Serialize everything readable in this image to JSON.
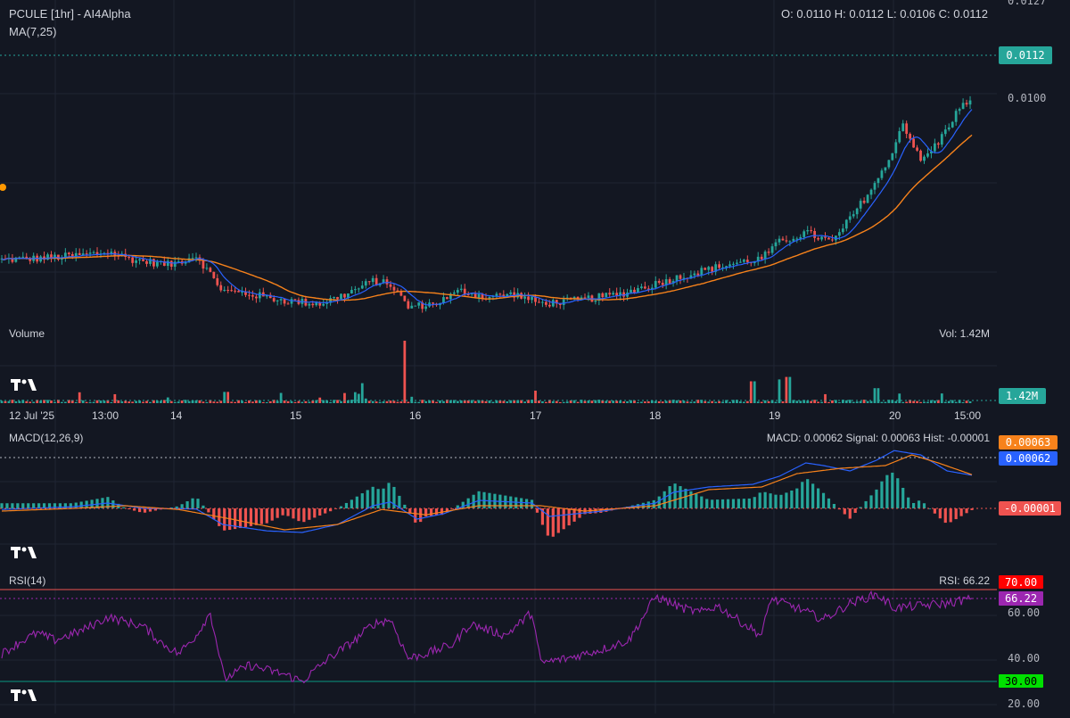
{
  "header": {
    "symbol_title": "PCULE [1hr] - AI4Alpha",
    "ma_label": "MA(7,25)",
    "ohlc": "O: 0.0110 H: 0.0112 L: 0.0106 C: 0.0112"
  },
  "price_axis": {
    "ticks": [
      "0.0127",
      "0.0100"
    ],
    "last_price": "0.0112"
  },
  "volume": {
    "label": "Volume",
    "readout": "Vol: 1.42M",
    "last": "1.42M"
  },
  "time_axis": {
    "labels": [
      "12 Jul '25",
      "13:00",
      "14",
      "15",
      "16",
      "17",
      "18",
      "19",
      "20",
      "15:00"
    ]
  },
  "macd": {
    "label": "MACD(12,26,9)",
    "readout": "MACD: 0.00062 Signal: 0.00063 Hist: -0.00001",
    "signal_value": "0.00063",
    "macd_value": "0.00062",
    "hist_value": "-0.00001"
  },
  "rsi": {
    "label": "RSI(14)",
    "readout": "RSI: 66.22",
    "upper": "70.00",
    "current": "66.22",
    "tick_60": "60.00",
    "tick_40": "40.00",
    "lower": "30.00",
    "tick_20": "20.00"
  },
  "colors": {
    "background": "#131722",
    "up": "#26a69a",
    "down": "#ef5350",
    "ma_fast": "#2962ff",
    "ma_slow": "#f7821b",
    "rsi_line": "#9c27b0",
    "grid": "#1f2433"
  },
  "icons": {
    "watermark": "tradingview-logo-icon"
  },
  "chart_data": [
    {
      "type": "candlestick",
      "series": [
        {
          "name": "MA(7)",
          "role": "fast moving average"
        },
        {
          "name": "MA(25)",
          "role": "slow moving average"
        }
      ],
      "x": [
        "12 Jul '25",
        "13:00",
        "14",
        "15",
        "16",
        "17",
        "18",
        "19",
        "20",
        "15:00"
      ],
      "ylim": [
        0.0078,
        0.0127
      ],
      "price_path_keypoints": [
        [
          0,
          0.00868
        ],
        [
          20,
          0.0087
        ],
        [
          45,
          0.00875
        ],
        [
          60,
          0.0088
        ],
        [
          75,
          0.00868
        ],
        [
          95,
          0.0086
        ],
        [
          110,
          0.00875
        ],
        [
          125,
          0.0082
        ],
        [
          140,
          0.00815
        ],
        [
          160,
          0.00805
        ],
        [
          180,
          0.008
        ],
        [
          195,
          0.00815
        ],
        [
          210,
          0.00835
        ],
        [
          220,
          0.0083
        ],
        [
          230,
          0.00795
        ],
        [
          245,
          0.008
        ],
        [
          260,
          0.0082
        ],
        [
          275,
          0.0081
        ],
        [
          290,
          0.00815
        ],
        [
          305,
          0.008
        ],
        [
          325,
          0.00805
        ],
        [
          350,
          0.00815
        ],
        [
          375,
          0.00835
        ],
        [
          395,
          0.0085
        ],
        [
          410,
          0.0086
        ],
        [
          430,
          0.0087
        ],
        [
          440,
          0.00895
        ],
        [
          455,
          0.0091
        ],
        [
          470,
          0.00895
        ],
        [
          485,
          0.0095
        ],
        [
          500,
          0.0101
        ],
        [
          510,
          0.0108
        ],
        [
          520,
          0.0102
        ],
        [
          530,
          0.0105
        ],
        [
          540,
          0.01095
        ],
        [
          549,
          0.0112
        ]
      ]
    },
    {
      "type": "bar",
      "name": "Volume",
      "last_value": "1.42M",
      "spikes": [
        [
          127,
          0.18
        ],
        [
          205,
          0.32
        ],
        [
          228,
          1.0
        ],
        [
          302,
          0.2
        ],
        [
          425,
          0.35
        ],
        [
          440,
          0.38
        ],
        [
          445,
          0.42
        ],
        [
          495,
          0.24
        ]
      ]
    },
    {
      "type": "line",
      "name": "MACD(12,26,9)",
      "series": [
        {
          "name": "MACD"
        },
        {
          "name": "Signal"
        },
        {
          "name": "Hist"
        }
      ],
      "last_values": {
        "macd": 0.00062,
        "signal": 0.00063,
        "hist": -1e-05
      },
      "macd_keypoints": [
        [
          0,
          -2e-05
        ],
        [
          40,
          3e-05
        ],
        [
          60,
          0.0001
        ],
        [
          80,
          0.0
        ],
        [
          110,
          -1e-05
        ],
        [
          125,
          -0.0003
        ],
        [
          150,
          -0.00042
        ],
        [
          170,
          -0.00045
        ],
        [
          190,
          -0.0003
        ],
        [
          210,
          5e-05
        ],
        [
          220,
          0.00012
        ],
        [
          235,
          -0.0002
        ],
        [
          250,
          -0.0001
        ],
        [
          270,
          0.00015
        ],
        [
          300,
          0.0001
        ],
        [
          310,
          -0.00015
        ],
        [
          340,
          -5e-05
        ],
        [
          370,
          0.0001
        ],
        [
          380,
          0.0003
        ],
        [
          400,
          0.0004
        ],
        [
          425,
          0.00045
        ],
        [
          440,
          0.0006
        ],
        [
          455,
          0.00085
        ],
        [
          465,
          0.0008
        ],
        [
          480,
          0.0007
        ],
        [
          495,
          0.0009
        ],
        [
          505,
          0.00108
        ],
        [
          520,
          0.001
        ],
        [
          535,
          0.0007
        ],
        [
          549,
          0.00062
        ]
      ],
      "signal_keypoints": [
        [
          0,
          -5e-05
        ],
        [
          40,
          0.0
        ],
        [
          70,
          5e-05
        ],
        [
          100,
          -2e-05
        ],
        [
          130,
          -0.0002
        ],
        [
          160,
          -0.0004
        ],
        [
          190,
          -0.0003
        ],
        [
          215,
          -2e-05
        ],
        [
          240,
          -0.00012
        ],
        [
          270,
          5e-05
        ],
        [
          305,
          5e-05
        ],
        [
          330,
          -5e-05
        ],
        [
          370,
          5e-05
        ],
        [
          400,
          0.00035
        ],
        [
          430,
          0.0004
        ],
        [
          450,
          0.00065
        ],
        [
          475,
          0.00075
        ],
        [
          500,
          0.0008
        ],
        [
          515,
          0.001
        ],
        [
          530,
          0.00085
        ],
        [
          549,
          0.00063
        ]
      ]
    },
    {
      "type": "line",
      "name": "RSI(14)",
      "ylim": [
        20,
        73
      ],
      "levels": [
        70,
        30
      ],
      "last_value": 66.22,
      "rsi_keypoints": [
        [
          0,
          42
        ],
        [
          10,
          47
        ],
        [
          20,
          51
        ],
        [
          30,
          48
        ],
        [
          45,
          52
        ],
        [
          60,
          58
        ],
        [
          70,
          56
        ],
        [
          80,
          54
        ],
        [
          90,
          47
        ],
        [
          100,
          42
        ],
        [
          110,
          50
        ],
        [
          118,
          60
        ],
        [
          126,
          31
        ],
        [
          140,
          37
        ],
        [
          150,
          35
        ],
        [
          160,
          33
        ],
        [
          170,
          30
        ],
        [
          185,
          40
        ],
        [
          200,
          48
        ],
        [
          210,
          55
        ],
        [
          220,
          57
        ],
        [
          230,
          40
        ],
        [
          240,
          42
        ],
        [
          255,
          46
        ],
        [
          265,
          55
        ],
        [
          285,
          50
        ],
        [
          300,
          60
        ],
        [
          305,
          38
        ],
        [
          320,
          40
        ],
        [
          340,
          44
        ],
        [
          355,
          48
        ],
        [
          370,
          67
        ],
        [
          385,
          62
        ],
        [
          395,
          60
        ],
        [
          405,
          63
        ],
        [
          420,
          55
        ],
        [
          430,
          50
        ],
        [
          435,
          66
        ],
        [
          450,
          62
        ],
        [
          465,
          57
        ],
        [
          480,
          64
        ],
        [
          495,
          68
        ],
        [
          505,
          62
        ],
        [
          520,
          63
        ],
        [
          535,
          64
        ],
        [
          549,
          66.22
        ]
      ]
    }
  ]
}
